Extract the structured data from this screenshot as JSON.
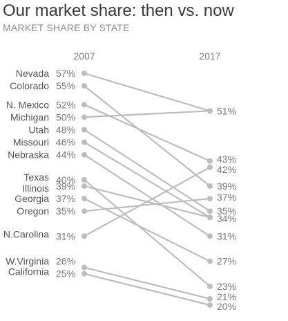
{
  "chart_data": {
    "type": "line",
    "title": "Our market share: then vs. now",
    "subtitle": "MARKET SHARE BY STATE",
    "categories": [
      "2007",
      "2017"
    ],
    "series": [
      {
        "name": "Nevada",
        "values": [
          57,
          51
        ],
        "start_label": "57%",
        "end_label": "51%"
      },
      {
        "name": "Colorado",
        "values": [
          55,
          39
        ],
        "start_label": "55%",
        "end_label": "39%"
      },
      {
        "name": "N. Mexico",
        "values": [
          52,
          43
        ],
        "start_label": "52%",
        "end_label": "43%"
      },
      {
        "name": "Michigan",
        "values": [
          50,
          51
        ],
        "start_label": "50%",
        "end_label": ""
      },
      {
        "name": "Utah",
        "values": [
          48,
          35
        ],
        "start_label": "48%",
        "end_label": "35%"
      },
      {
        "name": "Missouri",
        "values": [
          46,
          34
        ],
        "start_label": "46%",
        "end_label": "34%"
      },
      {
        "name": "Nebraska",
        "values": [
          44,
          31
        ],
        "start_label": "44%",
        "end_label": "31%"
      },
      {
        "name": "Texas",
        "values": [
          40,
          23
        ],
        "start_label": "40%",
        "end_label": "23%"
      },
      {
        "name": "Illinois",
        "values": [
          39,
          34
        ],
        "start_label": "39%",
        "end_label": ""
      },
      {
        "name": "Georgia",
        "values": [
          37,
          27
        ],
        "start_label": "37%",
        "end_label": "27%"
      },
      {
        "name": "Oregon",
        "values": [
          35,
          37
        ],
        "start_label": "35%",
        "end_label": "37%"
      },
      {
        "name": "N.Carolina",
        "values": [
          31,
          42
        ],
        "start_label": "31%",
        "end_label": "42%"
      },
      {
        "name": "W.Virginia",
        "values": [
          26,
          21
        ],
        "start_label": "26%",
        "end_label": "21%"
      },
      {
        "name": "California",
        "values": [
          25,
          20
        ],
        "start_label": "25%",
        "end_label": "20%"
      }
    ],
    "ylim": [
      20,
      57
    ],
    "grid": false,
    "legend": "none",
    "line_color": "#bdbdbd",
    "label_color": "#7a7a7a",
    "text_color": "#555555",
    "header_color": "#808080"
  }
}
